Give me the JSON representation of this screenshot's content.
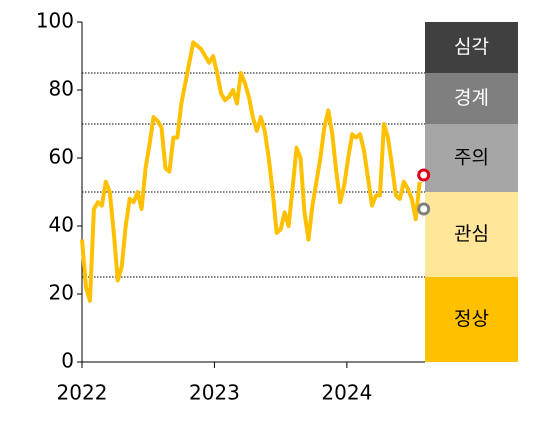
{
  "chart_data": {
    "type": "line",
    "x": [
      2022.0,
      2022.03,
      2022.06,
      2022.09,
      2022.12,
      2022.15,
      2022.18,
      2022.21,
      2022.24,
      2022.27,
      2022.3,
      2022.33,
      2022.36,
      2022.39,
      2022.42,
      2022.45,
      2022.48,
      2022.51,
      2022.54,
      2022.57,
      2022.6,
      2022.63,
      2022.66,
      2022.69,
      2022.72,
      2022.75,
      2022.78,
      2022.81,
      2022.84,
      2022.87,
      2022.9,
      2022.93,
      2022.96,
      2022.99,
      2023.02,
      2023.05,
      2023.08,
      2023.11,
      2023.14,
      2023.17,
      2023.2,
      2023.23,
      2023.26,
      2023.29,
      2023.32,
      2023.35,
      2023.38,
      2023.41,
      2023.44,
      2023.47,
      2023.5,
      2023.53,
      2023.56,
      2023.59,
      2023.62,
      2023.65,
      2023.68,
      2023.71,
      2023.74,
      2023.77,
      2023.8,
      2023.83,
      2023.86,
      2023.89,
      2023.92,
      2023.95,
      2023.98,
      2024.01,
      2024.04,
      2024.07,
      2024.1,
      2024.13,
      2024.16,
      2024.19,
      2024.22,
      2024.25,
      2024.28,
      2024.31,
      2024.34,
      2024.37,
      2024.4,
      2024.43,
      2024.46,
      2024.49,
      2024.52,
      2024.55
    ],
    "series": [
      {
        "color": "#ffc000",
        "values": [
          36,
          22,
          18,
          45,
          47,
          46,
          53,
          50,
          38,
          24,
          28,
          40,
          48,
          47,
          50,
          45,
          57,
          64,
          72,
          71,
          69,
          57,
          56,
          66,
          66,
          76,
          82,
          88,
          94,
          93,
          92,
          90,
          88,
          90,
          85,
          79,
          77,
          78,
          80,
          76,
          85,
          82,
          78,
          72,
          68,
          72,
          68,
          60,
          50,
          38,
          39,
          44,
          40,
          51,
          63,
          60,
          44,
          36,
          46,
          53,
          60,
          69,
          74,
          67,
          56,
          47,
          52,
          60,
          67,
          66,
          67,
          62,
          54,
          46,
          49,
          49,
          70,
          66,
          58,
          49,
          48,
          53,
          51,
          48,
          42,
          53
        ]
      }
    ],
    "markers": [
      {
        "x": 2024.58,
        "value": 55,
        "color": "#e0001b"
      },
      {
        "x": 2024.58,
        "value": 45,
        "color": "#7f7f7f"
      }
    ],
    "zones": [
      {
        "label": "심각",
        "from": 85,
        "to": 100,
        "color": "#404040",
        "text_color": "#ffffff"
      },
      {
        "label": "경계",
        "from": 70,
        "to": 85,
        "color": "#7f7f7f",
        "text_color": "#ffffff"
      },
      {
        "label": "주의",
        "from": 50,
        "to": 70,
        "color": "#a6a6a6",
        "text_color": "#000000"
      },
      {
        "label": "관심",
        "from": 25,
        "to": 50,
        "color": "#ffe699",
        "text_color": "#000000"
      },
      {
        "label": "정상",
        "from": 0,
        "to": 25,
        "color": "#ffc000",
        "text_color": "#000000"
      }
    ],
    "xlim": [
      2022,
      2024.59
    ],
    "xticks": [
      2022,
      2023,
      2024
    ],
    "ylim": [
      0,
      100
    ],
    "yticks": [
      0,
      20,
      40,
      60,
      80,
      100
    ]
  }
}
